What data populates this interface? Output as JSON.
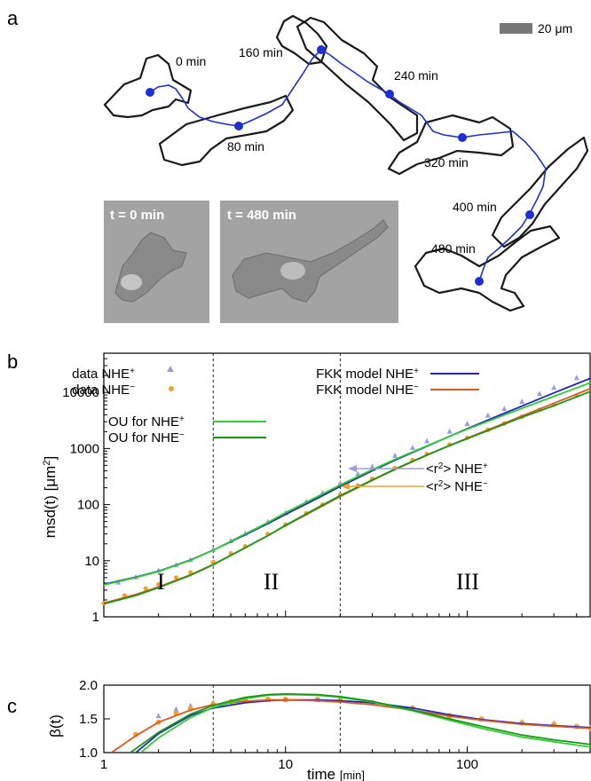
{
  "panel_a": {
    "letter": "a",
    "scalebar_label": "20 μm",
    "time_labels": [
      "0 min",
      "80 min",
      "160 min",
      "240 min",
      "320 min",
      "400 min",
      "480 min"
    ],
    "photo_labels": [
      "t = 0 min",
      "t = 480 min"
    ],
    "colors": {
      "outline": "#1a1a1a",
      "track": "#1f2fd6",
      "photo_bg": "#a3a3a3"
    }
  },
  "chart_data": [
    {
      "panel": "b",
      "type": "line",
      "xlabel": "",
      "ylabel": "msd(t) [μm²]",
      "xscale": "log",
      "yscale": "log",
      "xlim": [
        1,
        480
      ],
      "ylim": [
        1,
        50000
      ],
      "yticks": [
        "1",
        "10",
        "100",
        "1000",
        "10000"
      ],
      "vlines": [
        4,
        20
      ],
      "regime_labels": [
        "I",
        "II",
        "III"
      ],
      "legend_left": [
        "data NHE+",
        "data NHE−",
        "OU for NHE+",
        "OU for NHE−"
      ],
      "legend_right": [
        "FKK model NHE+",
        "FKK model NHE−"
      ],
      "annotations": [
        "<r²> NHE+",
        "<r²> NHE−"
      ],
      "series": [
        {
          "name": "data NHE+",
          "color": "#9c9ce0",
          "x": [
            1.2,
            1.5,
            2,
            2.5,
            3,
            4,
            5,
            6,
            8,
            10,
            13,
            16,
            20,
            25,
            30,
            40,
            50,
            60,
            80,
            100,
            130,
            160,
            200,
            250,
            300,
            400
          ],
          "values": [
            4.2,
            5.2,
            6.8,
            8.5,
            10.5,
            16,
            23,
            31,
            50,
            72,
            115,
            165,
            245,
            360,
            480,
            760,
            1050,
            1380,
            2050,
            2800,
            3950,
            5200,
            7000,
            9600,
            12400,
            18500
          ]
        },
        {
          "name": "data NHE−",
          "color": "#f2a22c",
          "x": [
            1,
            1.3,
            1.7,
            2,
            2.5,
            3,
            4,
            5,
            6,
            8,
            10,
            13,
            16,
            20,
            25,
            30,
            40,
            50,
            60,
            80,
            100,
            130,
            160,
            200,
            250,
            300,
            400
          ],
          "values": [
            1.75,
            2.4,
            3.2,
            3.8,
            5,
            6.2,
            9.5,
            13.5,
            18,
            30,
            44,
            70,
            100,
            150,
            220,
            290,
            450,
            620,
            800,
            1180,
            1560,
            2150,
            2800,
            3700,
            4900,
            6100,
            8800
          ]
        },
        {
          "name": "FKK model NHE+",
          "color": "#2026c8",
          "x": [
            1,
            1.5,
            2,
            3,
            4,
            6,
            8,
            10,
            15,
            20,
            30,
            40,
            60,
            80,
            100,
            150,
            200,
            300,
            480
          ],
          "values": [
            3.8,
            5.1,
            6.5,
            10.3,
            15.5,
            29,
            46,
            67,
            130,
            210,
            400,
            620,
            1100,
            1650,
            2250,
            3900,
            5700,
            9800,
            18000
          ]
        },
        {
          "name": "FKK model NHE−",
          "color": "#e0561c",
          "x": [
            1,
            1.5,
            2,
            3,
            4,
            6,
            8,
            10,
            15,
            20,
            30,
            40,
            60,
            80,
            100,
            150,
            200,
            300,
            480
          ],
          "values": [
            1.75,
            2.5,
            3.4,
            5.6,
            8.6,
            17,
            28,
            42,
            85,
            140,
            270,
            420,
            760,
            1130,
            1530,
            2600,
            3800,
            6400,
            11800
          ]
        },
        {
          "name": "OU for NHE+",
          "color": "#2fcf2f",
          "x": [
            1,
            1.5,
            2,
            3,
            4,
            6,
            8,
            10,
            15,
            20,
            30,
            40,
            60,
            80,
            100,
            150,
            200,
            300,
            480
          ],
          "values": [
            3.7,
            5,
            6.4,
            10.2,
            15.5,
            30,
            48,
            72,
            140,
            225,
            420,
            640,
            1120,
            1650,
            2200,
            3650,
            5200,
            8500,
            15000
          ]
        },
        {
          "name": "OU for NHE−",
          "color": "#169a16",
          "x": [
            1,
            1.5,
            2,
            3,
            4,
            6,
            8,
            10,
            15,
            20,
            30,
            40,
            60,
            80,
            100,
            150,
            200,
            300,
            480
          ],
          "values": [
            1.7,
            2.4,
            3.3,
            5.5,
            8.5,
            17,
            28,
            43,
            88,
            145,
            275,
            430,
            770,
            1130,
            1500,
            2500,
            3600,
            5800,
            10500
          ]
        }
      ]
    },
    {
      "panel": "c",
      "type": "line",
      "xlabel": "time [min]",
      "ylabel": "β(t)",
      "xscale": "log",
      "xlim": [
        1,
        480
      ],
      "ylim": [
        1.0,
        2.0
      ],
      "yticks": [
        "1.0",
        "1.5",
        "2.0"
      ],
      "xticks": [
        "1",
        "10",
        "100"
      ],
      "vlines": [
        4,
        20
      ],
      "series": [
        {
          "name": "data NHE+",
          "color": "#9c9ce0",
          "x": [
            2,
            2.5,
            3,
            4,
            5,
            6,
            8,
            10,
            15,
            20,
            30,
            50,
            80,
            120,
            200,
            300,
            480
          ],
          "values": [
            1.55,
            1.65,
            1.7,
            1.75,
            1.77,
            1.78,
            1.79,
            1.79,
            1.79,
            1.78,
            1.75,
            1.67,
            1.55,
            1.5,
            1.46,
            1.44,
            1.4
          ]
        },
        {
          "name": "data NHE−",
          "color": "#f2a22c",
          "x": [
            1.5,
            2,
            2.5,
            3,
            4,
            5,
            6,
            8,
            10,
            15,
            20,
            30,
            50,
            80,
            120,
            200,
            300,
            400,
            480
          ],
          "values": [
            1.27,
            1.45,
            1.58,
            1.65,
            1.72,
            1.75,
            1.77,
            1.79,
            1.79,
            1.79,
            1.78,
            1.74,
            1.66,
            1.55,
            1.5,
            1.44,
            1.42,
            1.39,
            1.35
          ]
        },
        {
          "name": "FKK model NHE+",
          "color": "#2026c8",
          "x": [
            1.5,
            2,
            3,
            4,
            6,
            8,
            10,
            15,
            20,
            30,
            50,
            80,
            120,
            200,
            300,
            480
          ],
          "values": [
            1.0,
            1.28,
            1.55,
            1.66,
            1.74,
            1.77,
            1.78,
            1.78,
            1.77,
            1.74,
            1.66,
            1.56,
            1.49,
            1.43,
            1.4,
            1.37
          ]
        },
        {
          "name": "FKK model NHE−",
          "color": "#e0561c",
          "x": [
            1.1,
            1.5,
            2,
            3,
            4,
            6,
            8,
            10,
            15,
            20,
            30,
            50,
            80,
            120,
            200,
            300,
            480
          ],
          "values": [
            1.0,
            1.25,
            1.45,
            1.63,
            1.71,
            1.76,
            1.78,
            1.78,
            1.77,
            1.75,
            1.71,
            1.63,
            1.54,
            1.48,
            1.42,
            1.39,
            1.36
          ]
        },
        {
          "name": "OU for NHE+",
          "color": "#2fcf2f",
          "x": [
            1.6,
            2,
            3,
            4,
            6,
            8,
            10,
            15,
            20,
            30,
            50,
            80,
            120,
            200,
            300,
            480
          ],
          "values": [
            1.0,
            1.22,
            1.52,
            1.67,
            1.8,
            1.85,
            1.86,
            1.85,
            1.82,
            1.75,
            1.62,
            1.48,
            1.36,
            1.23,
            1.16,
            1.08
          ]
        },
        {
          "name": "OU for NHE−",
          "color": "#169a16",
          "x": [
            1.4,
            2,
            3,
            4,
            6,
            8,
            10,
            15,
            20,
            30,
            50,
            80,
            120,
            200,
            300,
            480
          ],
          "values": [
            1.0,
            1.3,
            1.57,
            1.7,
            1.82,
            1.86,
            1.87,
            1.86,
            1.83,
            1.76,
            1.63,
            1.5,
            1.39,
            1.26,
            1.19,
            1.12
          ]
        }
      ]
    }
  ]
}
